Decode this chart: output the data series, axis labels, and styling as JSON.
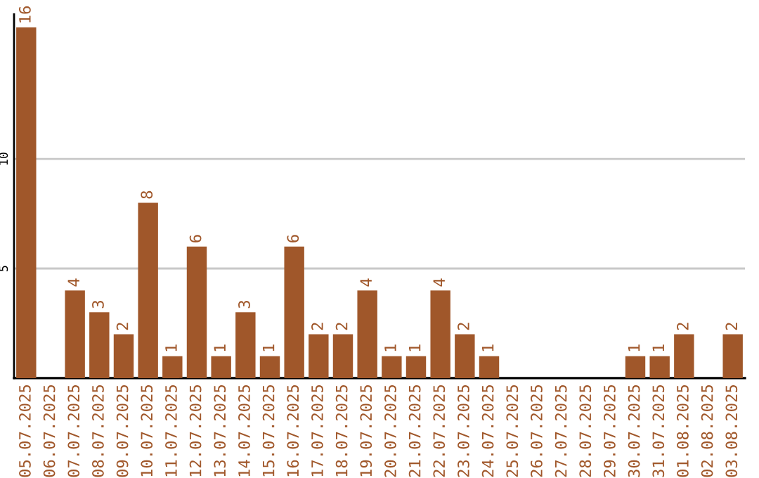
{
  "chart_data": {
    "type": "bar",
    "categories": [
      "05.07.2025",
      "06.07.2025",
      "07.07.2025",
      "08.07.2025",
      "09.07.2025",
      "10.07.2025",
      "11.07.2025",
      "12.07.2025",
      "13.07.2025",
      "14.07.2025",
      "15.07.2025",
      "16.07.2025",
      "17.07.2025",
      "18.07.2025",
      "19.07.2025",
      "20.07.2025",
      "21.07.2025",
      "22.07.2025",
      "23.07.2025",
      "24.07.2025",
      "25.07.2025",
      "26.07.2025",
      "27.07.2025",
      "28.07.2025",
      "29.07.2025",
      "30.07.2025",
      "31.07.2025",
      "01.08.2025",
      "02.08.2025",
      "03.08.2025"
    ],
    "values": [
      16,
      null,
      4,
      3,
      2,
      8,
      1,
      6,
      1,
      3,
      1,
      6,
      2,
      2,
      4,
      1,
      1,
      4,
      2,
      1,
      null,
      null,
      null,
      null,
      null,
      1,
      1,
      2,
      null,
      2
    ],
    "color": "#a0572a",
    "ylim": [
      0,
      16.6
    ],
    "yticks": [
      5,
      10
    ],
    "grid": "y",
    "data_labels": true
  }
}
